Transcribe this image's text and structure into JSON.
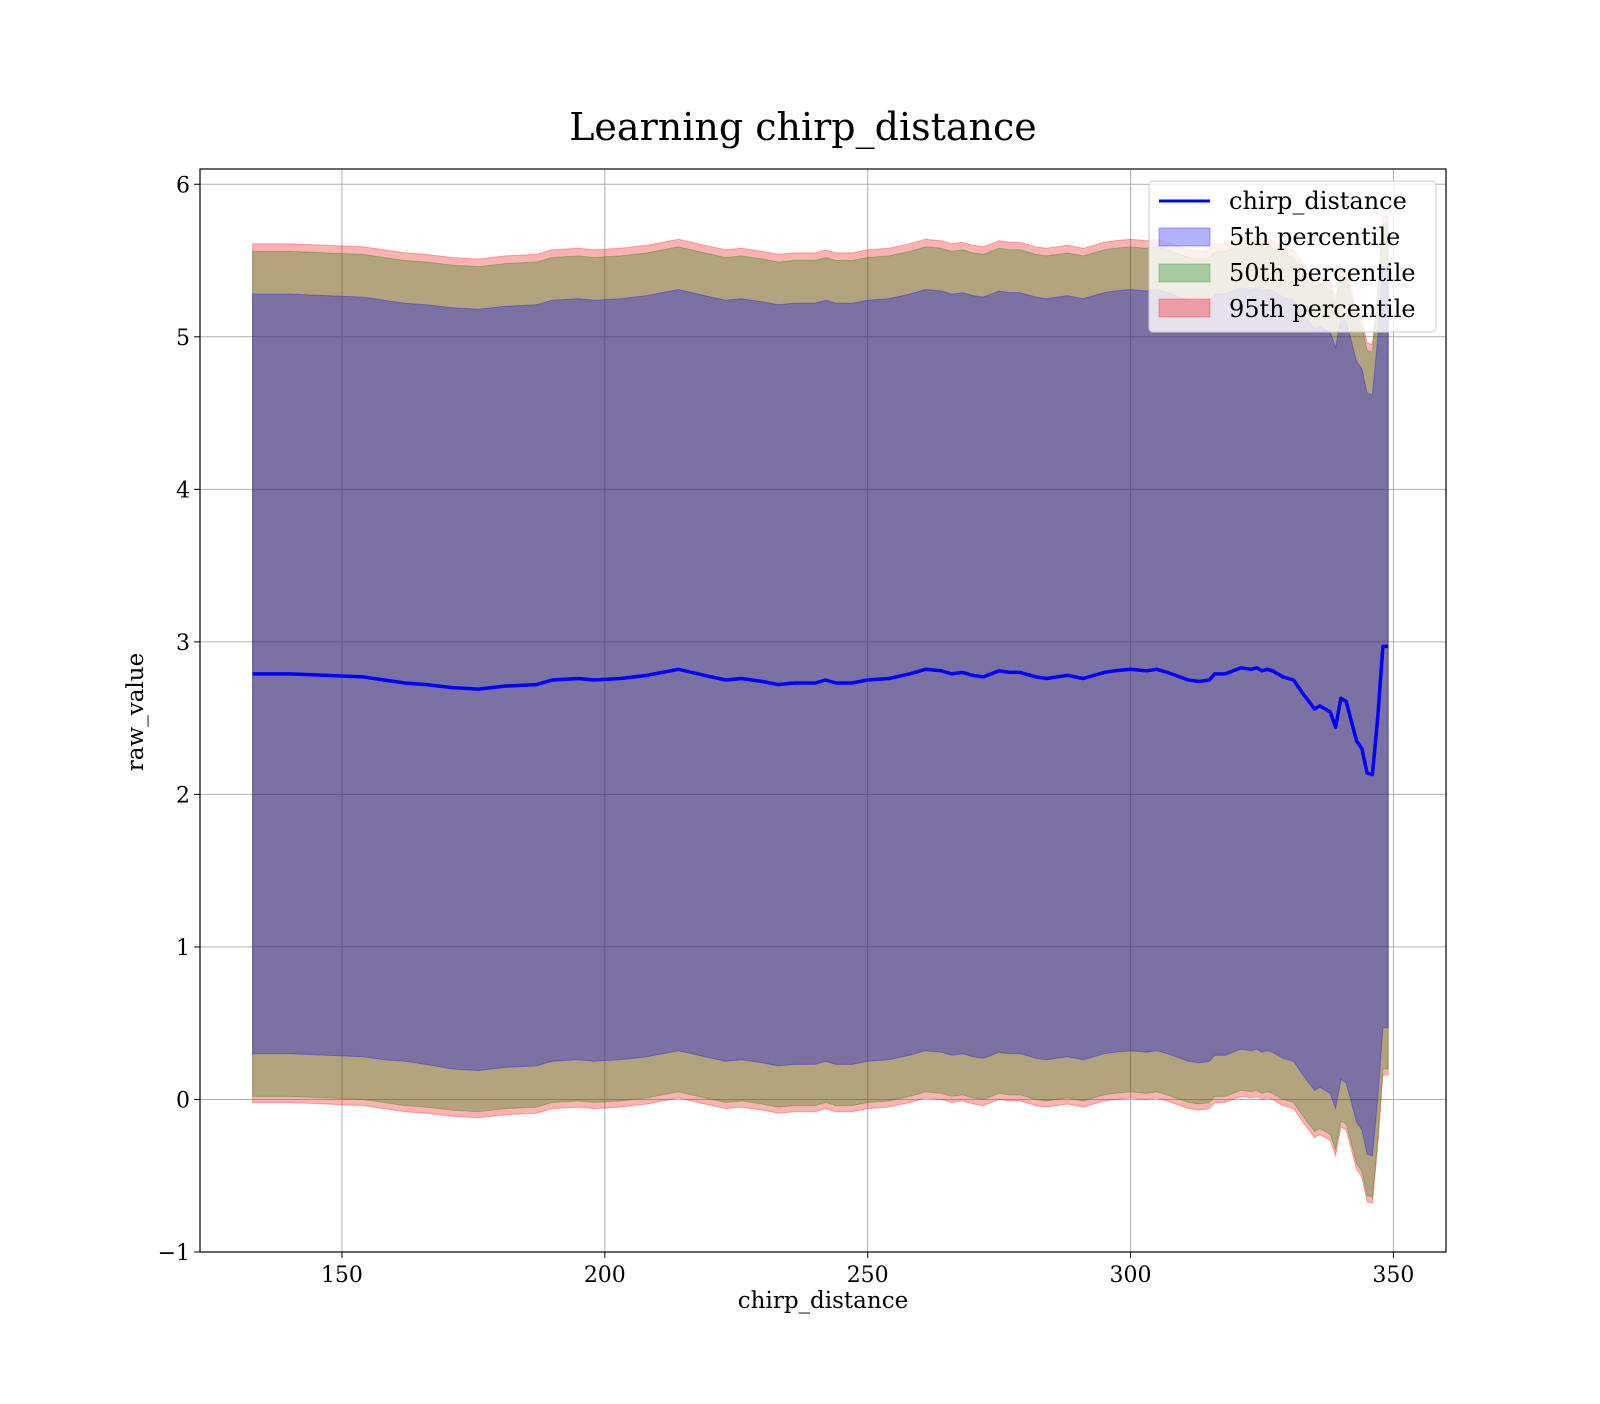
{
  "chart_data": {
    "type": "area",
    "title": "Learning chirp_distance",
    "xlabel": "chirp_distance",
    "ylabel": "raw_value",
    "xlim": [
      123,
      360
    ],
    "ylim": [
      -1,
      6.1
    ],
    "xticks": [
      150,
      200,
      250,
      300,
      350
    ],
    "yticks": [
      -1,
      0,
      1,
      2,
      3,
      4,
      5,
      6
    ],
    "xtick_labels": [
      "150",
      "200",
      "250",
      "300",
      "350"
    ],
    "ytick_labels": [
      "−1",
      "0",
      "1",
      "2",
      "3",
      "4",
      "5",
      "6"
    ],
    "grid": true,
    "legend_position": "top-right",
    "colors": {
      "line": "#0000ff",
      "band_5": "#0000ff",
      "band_50": "#008000",
      "band_95": "#ff0000"
    },
    "x": [
      133,
      140,
      147,
      154,
      158,
      162,
      166,
      171,
      176,
      181,
      187,
      190,
      195,
      198,
      203,
      208,
      214,
      219,
      223,
      226,
      230,
      233,
      236,
      240,
      242,
      244,
      247,
      250,
      254,
      258,
      260,
      261,
      264,
      266,
      268,
      270,
      272,
      275,
      277,
      279,
      282,
      284,
      288,
      291,
      293,
      295,
      297,
      300,
      303,
      305,
      307,
      311,
      313,
      315,
      316,
      318,
      321,
      323,
      324,
      325,
      326,
      327,
      329,
      331,
      333,
      335,
      336,
      338,
      339,
      340,
      341,
      342,
      343,
      344,
      345,
      346,
      347,
      348,
      349
    ],
    "series": [
      {
        "name": "chirp_distance",
        "values": [
          2.79,
          2.79,
          2.78,
          2.77,
          2.75,
          2.73,
          2.72,
          2.7,
          2.69,
          2.71,
          2.72,
          2.75,
          2.76,
          2.75,
          2.76,
          2.78,
          2.82,
          2.78,
          2.75,
          2.76,
          2.74,
          2.72,
          2.73,
          2.73,
          2.75,
          2.73,
          2.73,
          2.75,
          2.76,
          2.79,
          2.81,
          2.82,
          2.81,
          2.79,
          2.8,
          2.78,
          2.77,
          2.81,
          2.8,
          2.8,
          2.77,
          2.76,
          2.78,
          2.76,
          2.78,
          2.8,
          2.81,
          2.82,
          2.81,
          2.82,
          2.8,
          2.75,
          2.74,
          2.75,
          2.79,
          2.79,
          2.83,
          2.82,
          2.83,
          2.81,
          2.82,
          2.81,
          2.77,
          2.75,
          2.65,
          2.56,
          2.58,
          2.54,
          2.44,
          2.63,
          2.61,
          2.48,
          2.35,
          2.3,
          2.14,
          2.13,
          2.5,
          2.97,
          2.97
        ]
      },
      {
        "name": "5th percentile",
        "lower": [
          0.3,
          0.3,
          0.29,
          0.28,
          0.26,
          0.25,
          0.23,
          0.2,
          0.19,
          0.21,
          0.22,
          0.25,
          0.26,
          0.25,
          0.26,
          0.28,
          0.32,
          0.28,
          0.25,
          0.26,
          0.24,
          0.22,
          0.23,
          0.23,
          0.25,
          0.23,
          0.23,
          0.25,
          0.26,
          0.29,
          0.31,
          0.32,
          0.31,
          0.29,
          0.3,
          0.28,
          0.27,
          0.31,
          0.3,
          0.3,
          0.27,
          0.26,
          0.28,
          0.26,
          0.28,
          0.3,
          0.31,
          0.32,
          0.31,
          0.32,
          0.3,
          0.25,
          0.24,
          0.25,
          0.29,
          0.29,
          0.33,
          0.32,
          0.33,
          0.31,
          0.32,
          0.31,
          0.27,
          0.25,
          0.15,
          0.06,
          0.08,
          0.04,
          -0.06,
          0.13,
          0.11,
          -0.02,
          -0.15,
          -0.2,
          -0.36,
          -0.37,
          0,
          0.47,
          0.47
        ],
        "upper": [
          5.28,
          5.28,
          5.27,
          5.26,
          5.24,
          5.22,
          5.21,
          5.19,
          5.18,
          5.2,
          5.21,
          5.24,
          5.25,
          5.24,
          5.25,
          5.27,
          5.31,
          5.27,
          5.24,
          5.25,
          5.23,
          5.21,
          5.22,
          5.22,
          5.24,
          5.22,
          5.22,
          5.24,
          5.25,
          5.28,
          5.3,
          5.31,
          5.3,
          5.28,
          5.29,
          5.27,
          5.26,
          5.3,
          5.29,
          5.29,
          5.26,
          5.25,
          5.27,
          5.25,
          5.27,
          5.29,
          5.3,
          5.31,
          5.3,
          5.31,
          5.29,
          5.24,
          5.23,
          5.24,
          5.28,
          5.28,
          5.32,
          5.31,
          5.32,
          5.3,
          5.31,
          5.3,
          5.26,
          5.24,
          5.14,
          5.05,
          5.07,
          5.03,
          4.93,
          5.12,
          5.1,
          4.97,
          4.84,
          4.79,
          4.63,
          4.62,
          4.99,
          5.46,
          5.46
        ]
      },
      {
        "name": "50th percentile",
        "lower": [
          0.02,
          0.02,
          0.01,
          0,
          -0.02,
          -0.04,
          -0.05,
          -0.07,
          -0.08,
          -0.06,
          -0.05,
          -0.02,
          -0.01,
          -0.02,
          -0.01,
          0.01,
          0.05,
          0.01,
          -0.02,
          -0.01,
          -0.03,
          -0.05,
          -0.04,
          -0.04,
          -0.02,
          -0.04,
          -0.04,
          -0.02,
          -0.01,
          0.02,
          0.04,
          0.05,
          0.04,
          0.02,
          0.03,
          0.01,
          0,
          0.04,
          0.03,
          0.03,
          0,
          -0.01,
          0.01,
          -0.01,
          0.01,
          0.03,
          0.04,
          0.05,
          0.04,
          0.05,
          0.03,
          -0.02,
          -0.03,
          -0.02,
          0.02,
          0.02,
          0.06,
          0.05,
          0.06,
          0.04,
          0.05,
          0.04,
          0,
          -0.02,
          -0.12,
          -0.21,
          -0.19,
          -0.23,
          -0.33,
          -0.14,
          -0.16,
          -0.29,
          -0.42,
          -0.47,
          -0.63,
          -0.64,
          -0.27,
          0.2,
          0.2
        ],
        "upper": [
          5.56,
          5.56,
          5.55,
          5.54,
          5.52,
          5.5,
          5.49,
          5.47,
          5.46,
          5.48,
          5.49,
          5.52,
          5.53,
          5.52,
          5.53,
          5.55,
          5.59,
          5.55,
          5.52,
          5.53,
          5.51,
          5.49,
          5.5,
          5.5,
          5.52,
          5.5,
          5.5,
          5.52,
          5.53,
          5.56,
          5.58,
          5.59,
          5.58,
          5.56,
          5.57,
          5.55,
          5.54,
          5.58,
          5.57,
          5.57,
          5.54,
          5.53,
          5.55,
          5.53,
          5.55,
          5.57,
          5.58,
          5.59,
          5.58,
          5.59,
          5.57,
          5.52,
          5.51,
          5.52,
          5.56,
          5.56,
          5.6,
          5.59,
          5.6,
          5.58,
          5.59,
          5.58,
          5.54,
          5.52,
          5.42,
          5.33,
          5.35,
          5.31,
          5.21,
          5.4,
          5.38,
          5.25,
          5.12,
          5.07,
          4.91,
          4.9,
          5.27,
          5.74,
          5.74
        ]
      },
      {
        "name": "95th percentile",
        "lower": [
          -0.02,
          -0.02,
          -0.03,
          -0.04,
          -0.06,
          -0.08,
          -0.09,
          -0.11,
          -0.12,
          -0.1,
          -0.09,
          -0.06,
          -0.05,
          -0.06,
          -0.05,
          -0.03,
          0.01,
          -0.03,
          -0.06,
          -0.05,
          -0.07,
          -0.09,
          -0.08,
          -0.08,
          -0.06,
          -0.08,
          -0.08,
          -0.06,
          -0.05,
          -0.02,
          0,
          0.01,
          0,
          -0.02,
          -0.01,
          -0.03,
          -0.04,
          0,
          -0.01,
          -0.01,
          -0.04,
          -0.05,
          -0.03,
          -0.05,
          -0.03,
          -0.01,
          0,
          0.01,
          0,
          0.01,
          -0.01,
          -0.06,
          -0.07,
          -0.06,
          -0.02,
          -0.02,
          0.02,
          0.01,
          0.02,
          0,
          0.01,
          0,
          -0.04,
          -0.06,
          -0.16,
          -0.25,
          -0.23,
          -0.27,
          -0.37,
          -0.18,
          -0.2,
          -0.33,
          -0.46,
          -0.51,
          -0.67,
          -0.68,
          -0.31,
          0.16,
          0.16
        ],
        "upper": [
          5.61,
          5.61,
          5.6,
          5.59,
          5.57,
          5.55,
          5.54,
          5.52,
          5.51,
          5.53,
          5.54,
          5.57,
          5.58,
          5.57,
          5.58,
          5.6,
          5.64,
          5.6,
          5.57,
          5.58,
          5.56,
          5.54,
          5.55,
          5.55,
          5.57,
          5.55,
          5.55,
          5.57,
          5.58,
          5.61,
          5.63,
          5.64,
          5.63,
          5.61,
          5.62,
          5.6,
          5.59,
          5.63,
          5.62,
          5.62,
          5.59,
          5.58,
          5.6,
          5.58,
          5.6,
          5.62,
          5.63,
          5.64,
          5.63,
          5.64,
          5.62,
          5.57,
          5.56,
          5.57,
          5.61,
          5.61,
          5.65,
          5.64,
          5.65,
          5.63,
          5.64,
          5.63,
          5.59,
          5.57,
          5.47,
          5.38,
          5.4,
          5.36,
          5.26,
          5.45,
          5.43,
          5.3,
          5.17,
          5.12,
          4.96,
          4.95,
          5.32,
          5.79,
          5.79
        ]
      }
    ]
  }
}
